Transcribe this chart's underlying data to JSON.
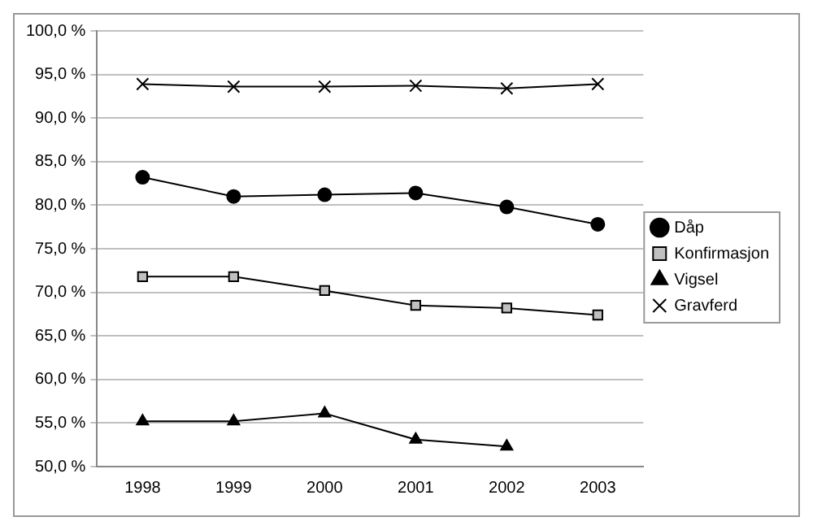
{
  "chart_data": {
    "type": "line",
    "categories": [
      "1998",
      "1999",
      "2000",
      "2001",
      "2002",
      "2003"
    ],
    "series": [
      {
        "name": "Dåp",
        "color": "#000000",
        "marker": "circle",
        "values": [
          83.2,
          81.0,
          81.2,
          81.4,
          79.8,
          77.8
        ]
      },
      {
        "name": "Konfirmasjon",
        "color": "#c0c0c0",
        "marker": "square",
        "values": [
          71.8,
          71.8,
          70.2,
          68.5,
          68.2,
          67.4
        ]
      },
      {
        "name": "Vigsel",
        "color": "#000000",
        "marker": "triangle",
        "values": [
          55.2,
          55.2,
          56.1,
          53.1,
          52.3,
          null
        ]
      },
      {
        "name": "Gravferd",
        "color": "#000000",
        "marker": "cross",
        "values": [
          93.9,
          93.6,
          93.6,
          93.7,
          93.4,
          93.9
        ]
      }
    ],
    "ylim": [
      50,
      100
    ],
    "yticks": [
      {
        "value": 50,
        "label": "50,0 %"
      },
      {
        "value": 55,
        "label": "55,0 %"
      },
      {
        "value": 60,
        "label": "60,0 %"
      },
      {
        "value": 65,
        "label": "65,0 %"
      },
      {
        "value": 70,
        "label": "70,0 %"
      },
      {
        "value": 75,
        "label": "75,0 %"
      },
      {
        "value": 80,
        "label": "80,0 %"
      },
      {
        "value": 85,
        "label": "85,0 %"
      },
      {
        "value": 90,
        "label": "90,0 %"
      },
      {
        "value": 95,
        "label": "95,0 %"
      },
      {
        "value": 100,
        "label": "100,0 %"
      }
    ],
    "grid": "y",
    "legend": "right",
    "line_style": "solid"
  }
}
